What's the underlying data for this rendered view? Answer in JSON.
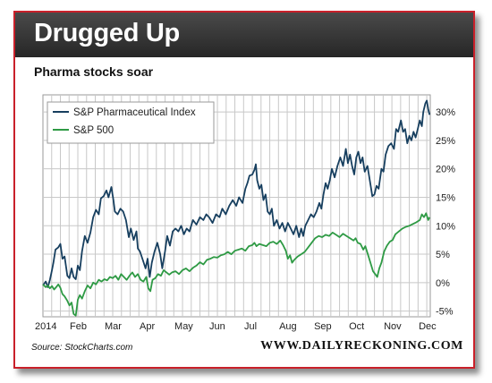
{
  "header": {
    "title": "Drugged Up",
    "subtitle": "Pharma stocks soar"
  },
  "footer": {
    "source": "Source: StockCharts.com",
    "brand": "WWW.DAILYRECKONING.COM"
  },
  "colors": {
    "frame_border": "#c9202a",
    "header_bg": "#333333",
    "pharma": "#173f5f",
    "sp500": "#2e9a44",
    "grid": "#c8c8c8"
  },
  "chart_data": {
    "type": "line",
    "title": "Pharma stocks soar",
    "x_unit": "month-index (0 = start of 2014)",
    "xticks": [
      {
        "label": "2014",
        "x": 0
      },
      {
        "label": "Feb",
        "x": 1
      },
      {
        "label": "Mar",
        "x": 2
      },
      {
        "label": "Apr",
        "x": 3
      },
      {
        "label": "May",
        "x": 4
      },
      {
        "label": "Jun",
        "x": 5
      },
      {
        "label": "Jul",
        "x": 6
      },
      {
        "label": "Aug",
        "x": 7
      },
      {
        "label": "Sep",
        "x": 8
      },
      {
        "label": "Oct",
        "x": 9
      },
      {
        "label": "Nov",
        "x": 10
      },
      {
        "label": "Dec",
        "x": 11
      }
    ],
    "xlim": [
      0,
      11.1
    ],
    "ylim": [
      -6,
      33
    ],
    "yticks": [
      {
        "label": "30%",
        "v": 30
      },
      {
        "label": "25%",
        "v": 25
      },
      {
        "label": "20%",
        "v": 20
      },
      {
        "label": "15%",
        "v": 15
      },
      {
        "label": "10%",
        "v": 10
      },
      {
        "label": "5%",
        "v": 5
      },
      {
        "label": "0%",
        "v": 0
      },
      {
        "label": "-5%",
        "v": -5
      }
    ],
    "grid": true,
    "legend_position": "top-left",
    "series": [
      {
        "name": "S&P Pharmaceutical Index",
        "color": "#173f5f",
        "points": [
          [
            0,
            -0.5
          ],
          [
            0.08,
            0.2
          ],
          [
            0.14,
            -0.8
          ],
          [
            0.2,
            0.5
          ],
          [
            0.26,
            2.2
          ],
          [
            0.3,
            3.5
          ],
          [
            0.36,
            5.8
          ],
          [
            0.44,
            6.2
          ],
          [
            0.5,
            6.8
          ],
          [
            0.56,
            4.2
          ],
          [
            0.62,
            4.6
          ],
          [
            0.7,
            1.2
          ],
          [
            0.76,
            0.8
          ],
          [
            0.82,
            2.5
          ],
          [
            0.88,
            1.0
          ],
          [
            0.94,
            0.6
          ],
          [
            1.0,
            3.0
          ],
          [
            1.06,
            2.2
          ],
          [
            1.12,
            5.5
          ],
          [
            1.2,
            8.2
          ],
          [
            1.28,
            7.0
          ],
          [
            1.36,
            8.8
          ],
          [
            1.44,
            11.5
          ],
          [
            1.52,
            12.8
          ],
          [
            1.6,
            12.0
          ],
          [
            1.66,
            14.8
          ],
          [
            1.74,
            15.2
          ],
          [
            1.82,
            16.2
          ],
          [
            1.88,
            15.0
          ],
          [
            1.96,
            16.8
          ],
          [
            2.02,
            14.5
          ],
          [
            2.06,
            12.5
          ],
          [
            2.14,
            12.0
          ],
          [
            2.22,
            13.0
          ],
          [
            2.3,
            12.5
          ],
          [
            2.38,
            11.0
          ],
          [
            2.46,
            8.0
          ],
          [
            2.52,
            9.5
          ],
          [
            2.6,
            7.5
          ],
          [
            2.68,
            9.0
          ],
          [
            2.72,
            6.0
          ],
          [
            2.78,
            5.5
          ],
          [
            2.86,
            4.0
          ],
          [
            2.94,
            2.5
          ],
          [
            3.0,
            4.2
          ],
          [
            3.06,
            1.0
          ],
          [
            3.12,
            3.5
          ],
          [
            3.2,
            5.5
          ],
          [
            3.28,
            7.0
          ],
          [
            3.36,
            5.0
          ],
          [
            3.42,
            2.5
          ],
          [
            3.5,
            5.5
          ],
          [
            3.56,
            8.2
          ],
          [
            3.64,
            6.5
          ],
          [
            3.72,
            9.0
          ],
          [
            3.8,
            9.5
          ],
          [
            3.88,
            9.0
          ],
          [
            3.96,
            10.0
          ],
          [
            4.04,
            8.5
          ],
          [
            4.12,
            9.5
          ],
          [
            4.2,
            9.0
          ],
          [
            4.3,
            11.0
          ],
          [
            4.4,
            10.2
          ],
          [
            4.5,
            11.5
          ],
          [
            4.6,
            11.0
          ],
          [
            4.68,
            12.0
          ],
          [
            4.76,
            11.5
          ],
          [
            4.86,
            10.5
          ],
          [
            4.96,
            12.0
          ],
          [
            5.06,
            11.5
          ],
          [
            5.14,
            13.0
          ],
          [
            5.24,
            12.0
          ],
          [
            5.34,
            13.5
          ],
          [
            5.44,
            14.5
          ],
          [
            5.54,
            13.5
          ],
          [
            5.62,
            15.0
          ],
          [
            5.72,
            14.0
          ],
          [
            5.8,
            16.5
          ],
          [
            5.86,
            17.5
          ],
          [
            5.92,
            18.8
          ],
          [
            6.0,
            19.0
          ],
          [
            6.06,
            19.8
          ],
          [
            6.1,
            20.8
          ],
          [
            6.14,
            18.0
          ],
          [
            6.2,
            16.5
          ],
          [
            6.26,
            17.2
          ],
          [
            6.32,
            14.5
          ],
          [
            6.38,
            15.5
          ],
          [
            6.44,
            12.5
          ],
          [
            6.5,
            12.0
          ],
          [
            6.56,
            13.0
          ],
          [
            6.62,
            10.0
          ],
          [
            6.7,
            11.0
          ],
          [
            6.78,
            9.5
          ],
          [
            6.86,
            10.5
          ],
          [
            6.94,
            9.0
          ],
          [
            7.02,
            10.5
          ],
          [
            7.1,
            9.5
          ],
          [
            7.18,
            8.5
          ],
          [
            7.26,
            10.0
          ],
          [
            7.34,
            8.0
          ],
          [
            7.4,
            9.5
          ],
          [
            7.46,
            8.2
          ],
          [
            7.52,
            10.0
          ],
          [
            7.6,
            11.0
          ],
          [
            7.68,
            12.0
          ],
          [
            7.76,
            11.5
          ],
          [
            7.84,
            12.5
          ],
          [
            7.92,
            14.0
          ],
          [
            7.98,
            13.0
          ],
          [
            8.04,
            15.5
          ],
          [
            8.1,
            17.5
          ],
          [
            8.16,
            16.5
          ],
          [
            8.22,
            18.0
          ],
          [
            8.28,
            20.0
          ],
          [
            8.36,
            18.5
          ],
          [
            8.44,
            20.5
          ],
          [
            8.52,
            22.0
          ],
          [
            8.6,
            20.5
          ],
          [
            8.68,
            23.5
          ],
          [
            8.74,
            21.0
          ],
          [
            8.8,
            22.5
          ],
          [
            8.86,
            20.5
          ],
          [
            8.92,
            19.0
          ],
          [
            8.98,
            22.0
          ],
          [
            9.04,
            23.0
          ],
          [
            9.1,
            21.0
          ],
          [
            9.16,
            22.0
          ],
          [
            9.22,
            19.5
          ],
          [
            9.3,
            20.5
          ],
          [
            9.38,
            17.5
          ],
          [
            9.44,
            15.2
          ],
          [
            9.5,
            15.5
          ],
          [
            9.56,
            17.0
          ],
          [
            9.62,
            16.5
          ],
          [
            9.7,
            20.0
          ],
          [
            9.76,
            19.5
          ],
          [
            9.82,
            22.5
          ],
          [
            9.9,
            24.0
          ],
          [
            9.98,
            24.5
          ],
          [
            10.06,
            23.5
          ],
          [
            10.12,
            27.0
          ],
          [
            10.18,
            26.5
          ],
          [
            10.26,
            28.5
          ],
          [
            10.32,
            26.5
          ],
          [
            10.38,
            27.0
          ],
          [
            10.44,
            24.5
          ],
          [
            10.5,
            25.8
          ],
          [
            10.56,
            25.0
          ],
          [
            10.62,
            26.5
          ],
          [
            10.68,
            25.5
          ],
          [
            10.74,
            27.0
          ],
          [
            10.8,
            28.5
          ],
          [
            10.86,
            27.5
          ],
          [
            10.9,
            30.0
          ],
          [
            10.96,
            31.5
          ],
          [
            11.0,
            32.0
          ],
          [
            11.04,
            30.5
          ],
          [
            11.08,
            29.5
          ]
        ]
      },
      {
        "name": "S&P 500",
        "color": "#2e9a44",
        "points": [
          [
            0,
            -0.3
          ],
          [
            0.08,
            -0.8
          ],
          [
            0.14,
            -0.5
          ],
          [
            0.2,
            -1.0
          ],
          [
            0.26,
            -0.6
          ],
          [
            0.32,
            -1.2
          ],
          [
            0.38,
            -0.8
          ],
          [
            0.44,
            -0.3
          ],
          [
            0.5,
            -0.9
          ],
          [
            0.56,
            -2.0
          ],
          [
            0.62,
            -2.4
          ],
          [
            0.7,
            -3.2
          ],
          [
            0.76,
            -4.0
          ],
          [
            0.82,
            -3.5
          ],
          [
            0.88,
            -5.5
          ],
          [
            0.94,
            -5.8
          ],
          [
            1.0,
            -3.0
          ],
          [
            1.06,
            -2.2
          ],
          [
            1.12,
            -2.8
          ],
          [
            1.2,
            -1.5
          ],
          [
            1.28,
            -0.5
          ],
          [
            1.36,
            -1.0
          ],
          [
            1.44,
            0.0
          ],
          [
            1.52,
            -0.3
          ],
          [
            1.6,
            0.5
          ],
          [
            1.68,
            0.2
          ],
          [
            1.76,
            0.6
          ],
          [
            1.84,
            0.4
          ],
          [
            1.92,
            1.0
          ],
          [
            2.0,
            0.8
          ],
          [
            2.08,
            1.2
          ],
          [
            2.16,
            0.5
          ],
          [
            2.24,
            1.5
          ],
          [
            2.32,
            1.0
          ],
          [
            2.4,
            0.5
          ],
          [
            2.48,
            1.2
          ],
          [
            2.56,
            1.8
          ],
          [
            2.64,
            1.0
          ],
          [
            2.72,
            1.5
          ],
          [
            2.8,
            0.5
          ],
          [
            2.88,
            0.2
          ],
          [
            2.96,
            1.0
          ],
          [
            3.02,
            -1.0
          ],
          [
            3.08,
            -1.5
          ],
          [
            3.14,
            0.5
          ],
          [
            3.22,
            0.8
          ],
          [
            3.3,
            1.5
          ],
          [
            3.38,
            1.2
          ],
          [
            3.46,
            2.2
          ],
          [
            3.54,
            1.8
          ],
          [
            3.62,
            1.4
          ],
          [
            3.7,
            1.8
          ],
          [
            3.8,
            2.0
          ],
          [
            3.9,
            1.5
          ],
          [
            4.0,
            2.2
          ],
          [
            4.1,
            2.5
          ],
          [
            4.2,
            2.0
          ],
          [
            4.3,
            2.6
          ],
          [
            4.4,
            3.0
          ],
          [
            4.5,
            3.6
          ],
          [
            4.6,
            3.2
          ],
          [
            4.7,
            4.0
          ],
          [
            4.8,
            4.2
          ],
          [
            4.9,
            4.5
          ],
          [
            5.0,
            4.4
          ],
          [
            5.1,
            4.8
          ],
          [
            5.2,
            5.0
          ],
          [
            5.3,
            5.4
          ],
          [
            5.4,
            5.0
          ],
          [
            5.5,
            5.6
          ],
          [
            5.6,
            5.8
          ],
          [
            5.7,
            6.0
          ],
          [
            5.8,
            5.6
          ],
          [
            5.9,
            6.4
          ],
          [
            6.0,
            6.6
          ],
          [
            6.06,
            7.0
          ],
          [
            6.12,
            6.4
          ],
          [
            6.2,
            6.8
          ],
          [
            6.3,
            6.6
          ],
          [
            6.4,
            6.4
          ],
          [
            6.5,
            7.0
          ],
          [
            6.6,
            7.2
          ],
          [
            6.7,
            6.8
          ],
          [
            6.8,
            7.4
          ],
          [
            6.88,
            6.6
          ],
          [
            6.96,
            5.6
          ],
          [
            7.02,
            4.2
          ],
          [
            7.08,
            4.8
          ],
          [
            7.14,
            3.5
          ],
          [
            7.2,
            4.0
          ],
          [
            7.3,
            4.6
          ],
          [
            7.4,
            5.0
          ],
          [
            7.5,
            5.4
          ],
          [
            7.6,
            6.2
          ],
          [
            7.7,
            7.0
          ],
          [
            7.8,
            7.8
          ],
          [
            7.9,
            8.2
          ],
          [
            8.0,
            8.0
          ],
          [
            8.1,
            8.4
          ],
          [
            8.2,
            8.2
          ],
          [
            8.3,
            8.8
          ],
          [
            8.4,
            8.4
          ],
          [
            8.5,
            8.0
          ],
          [
            8.6,
            8.6
          ],
          [
            8.7,
            8.2
          ],
          [
            8.8,
            7.8
          ],
          [
            8.9,
            7.4
          ],
          [
            8.96,
            7.8
          ],
          [
            9.02,
            7.0
          ],
          [
            9.1,
            6.8
          ],
          [
            9.18,
            5.8
          ],
          [
            9.24,
            6.4
          ],
          [
            9.32,
            4.8
          ],
          [
            9.4,
            3.2
          ],
          [
            9.46,
            2.0
          ],
          [
            9.52,
            1.5
          ],
          [
            9.58,
            1.0
          ],
          [
            9.64,
            2.5
          ],
          [
            9.7,
            3.5
          ],
          [
            9.78,
            5.5
          ],
          [
            9.86,
            6.5
          ],
          [
            9.94,
            7.2
          ],
          [
            10.02,
            7.5
          ],
          [
            10.1,
            8.5
          ],
          [
            10.2,
            9.0
          ],
          [
            10.3,
            9.5
          ],
          [
            10.4,
            9.8
          ],
          [
            10.5,
            10.0
          ],
          [
            10.6,
            10.3
          ],
          [
            10.7,
            10.6
          ],
          [
            10.8,
            11.0
          ],
          [
            10.86,
            12.0
          ],
          [
            10.92,
            11.5
          ],
          [
            10.98,
            12.2
          ],
          [
            11.04,
            11.0
          ],
          [
            11.08,
            11.5
          ]
        ]
      }
    ]
  }
}
